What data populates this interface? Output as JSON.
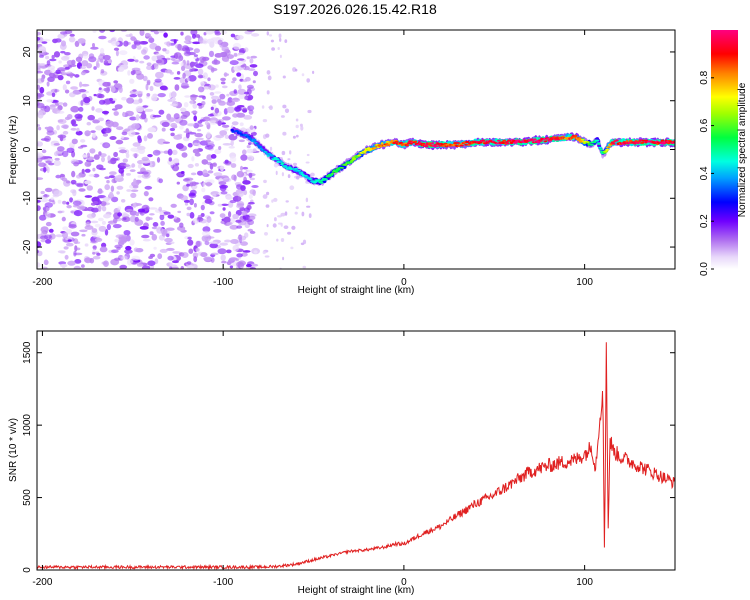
{
  "title": "S197.2026.026.15.42.R18",
  "chart_data": [
    {
      "type": "heatmap",
      "xlabel": "Height of straight line (km)",
      "ylabel": "Frequency (Hz)",
      "xlim": [
        -203,
        150
      ],
      "ylim": [
        -24.5,
        24.5
      ],
      "xticks": [
        -200,
        -100,
        0,
        100
      ],
      "yticks": [
        -20,
        -10,
        0,
        10,
        20
      ],
      "colorbar": {
        "label": "Normalized spectral amplitude",
        "range": [
          0,
          1
        ],
        "ticks": [
          0.0,
          0.2,
          0.4,
          0.6,
          0.8
        ],
        "tick_labels": [
          "0.0",
          "0.2",
          "0.4",
          "0.6",
          "0.8"
        ],
        "colormap": [
          "#ffffff",
          "#c090f0",
          "#8000ff",
          "#0000ff",
          "#00c0ff",
          "#00ff80",
          "#80ff00",
          "#ffff00",
          "#ff8000",
          "#ff0000",
          "#ff0080"
        ]
      },
      "noise_region": {
        "x_start": -203,
        "x_end": -82,
        "amplitude_range": [
          0.05,
          0.15
        ]
      },
      "ridge": {
        "x": [
          -95,
          -85,
          -75,
          -65,
          -58,
          -50,
          -45,
          -40,
          -30,
          -20,
          -12,
          -5,
          0,
          5,
          10,
          20,
          30,
          40,
          60,
          80,
          90,
          95,
          100,
          104,
          107,
          110,
          115,
          130,
          150
        ],
        "freq": [
          4.0,
          2.5,
          -1.0,
          -3.5,
          -4.5,
          -6.5,
          -6.5,
          -5.0,
          -2.5,
          0.0,
          1.0,
          1.5,
          1.0,
          1.5,
          1.0,
          1.0,
          1.0,
          1.5,
          1.5,
          2.0,
          2.5,
          2.5,
          1.5,
          1.0,
          2.0,
          -1.0,
          1.5,
          1.5,
          1.5
        ],
        "amplitude": [
          0.28,
          0.35,
          0.4,
          0.45,
          0.4,
          0.45,
          0.5,
          0.55,
          0.6,
          0.7,
          0.8,
          0.85,
          0.85,
          0.9,
          0.95,
          0.95,
          0.85,
          0.9,
          0.95,
          0.97,
          0.85,
          0.9,
          0.7,
          0.55,
          0.45,
          0.5,
          0.9,
          0.95,
          0.95
        ]
      }
    },
    {
      "type": "line",
      "xlabel": "Height of straight line (km)",
      "ylabel": "SNR (10 * v/v)",
      "xlim": [
        -203,
        150
      ],
      "ylim": [
        0,
        1650
      ],
      "xticks": [
        -200,
        -100,
        0,
        100
      ],
      "yticks": [
        0,
        500,
        1000,
        1500
      ],
      "series": [
        {
          "name": "SNR",
          "color": "#e02020",
          "x": [
            -203,
            -150,
            -100,
            -80,
            -70,
            -60,
            -50,
            -40,
            -30,
            -20,
            -10,
            -5,
            0,
            10,
            20,
            30,
            40,
            50,
            60,
            70,
            80,
            90,
            95,
            100,
            104,
            106,
            108,
            110,
            111,
            112,
            113,
            114,
            116,
            120,
            130,
            140,
            150
          ],
          "y": [
            20,
            20,
            20,
            20,
            25,
            40,
            70,
            100,
            130,
            140,
            160,
            180,
            180,
            250,
            300,
            380,
            460,
            520,
            600,
            680,
            720,
            750,
            760,
            800,
            850,
            700,
            1000,
            1250,
            100,
            1600,
            250,
            900,
            820,
            780,
            720,
            660,
            600
          ]
        }
      ]
    }
  ]
}
